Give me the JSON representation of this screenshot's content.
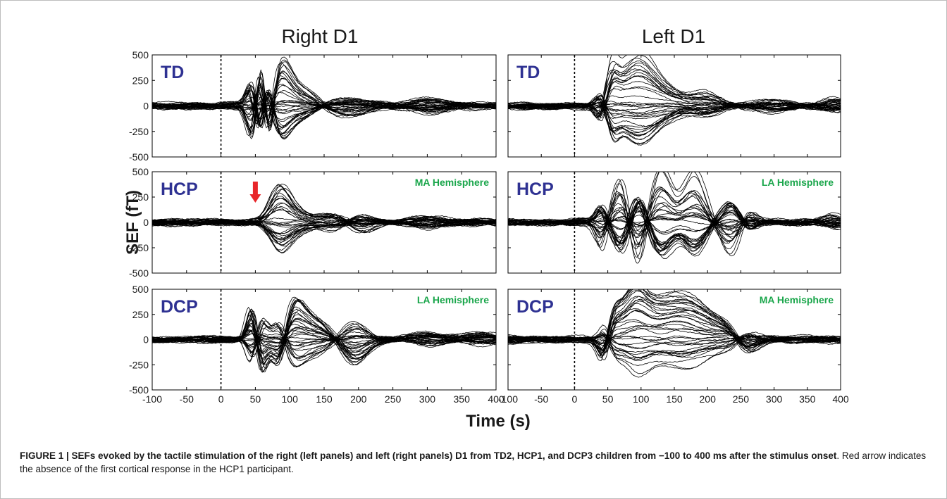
{
  "figure": {
    "y_axis_label": "SEF (fT)",
    "x_axis_label": "Time (s)",
    "column_titles": [
      "Right D1",
      "Left D1"
    ],
    "row_labels": [
      "TD",
      "HCP",
      "DCP"
    ],
    "hemisphere_labels": [
      [
        "",
        ""
      ],
      [
        "MA Hemisphere",
        "LA Hemisphere"
      ],
      [
        "LA Hemisphere",
        "MA Hemisphere"
      ]
    ],
    "colors": {
      "row_label": "#2e3192",
      "hemisphere_label": "#1aa64b",
      "arrow": "#e8262a",
      "traces": "#000000"
    }
  },
  "chart_data": {
    "type": "line",
    "description": "Six panels of overlaid MEG sensor waveforms (butterfly plots)",
    "xlim": [
      -100,
      400
    ],
    "ylim": [
      -500,
      500
    ],
    "x_ticks": [
      "-100",
      "-50",
      "0",
      "50",
      "100",
      "150",
      "200",
      "250",
      "300",
      "350",
      "400"
    ],
    "y_ticks": [
      "500",
      "250",
      "0",
      "-250",
      "-500"
    ],
    "stimulus_onset_marker_x": 0,
    "annotations": [
      {
        "panel": "Right D1 / HCP",
        "type": "arrow",
        "color": "red",
        "x": 50
      }
    ]
  },
  "caption": {
    "lead": "FIGURE 1 | SEFs evoked by the tactile stimulation of the right (left panels) and left (right panels) D1 from TD2, HCP1, and DCP3 children from −100 to 400 ms after the stimulus onset",
    "rest": ". Red arrow indicates the absence of the first cortical response in the HCP1 participant."
  }
}
